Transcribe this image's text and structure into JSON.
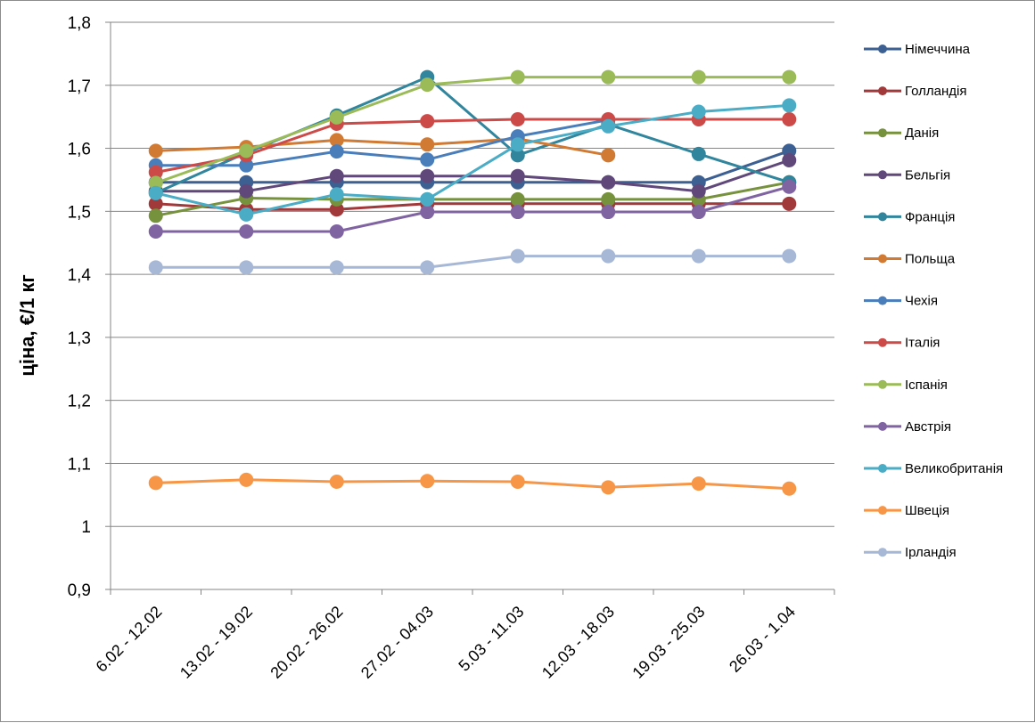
{
  "chart_data": {
    "type": "line",
    "title": "",
    "xlabel": "",
    "ylabel": "ціна, €/1 кг",
    "ylim": [
      0.9,
      1.8
    ],
    "ytick_step": 0.1,
    "ytick_labels": [
      "0,9",
      "1",
      "1,1",
      "1,2",
      "1,3",
      "1,4",
      "1,5",
      "1,6",
      "1,7",
      "1,8"
    ],
    "grid": true,
    "legend_position": "right",
    "categories": [
      "6.02 - 12.02",
      "13.02 - 19.02",
      "20.02 - 26.02",
      "27.02 - 04.03",
      "5.03 - 11.03",
      "12.03 - 18.03",
      "19.03 - 25.03",
      "26.03 - 1.04"
    ],
    "series": [
      {
        "name": "Німеччина",
        "color": "#3d6093",
        "values": [
          1.546,
          1.546,
          1.546,
          1.546,
          1.546,
          1.546,
          1.546,
          1.596
        ]
      },
      {
        "name": "Голландія",
        "color": "#a1383a",
        "values": [
          1.512,
          1.503,
          1.503,
          1.512,
          1.512,
          1.512,
          1.512,
          1.512
        ]
      },
      {
        "name": "Данія",
        "color": "#76923c",
        "values": [
          1.493,
          1.521,
          1.519,
          1.519,
          1.519,
          1.519,
          1.519,
          1.546
        ]
      },
      {
        "name": "Бельгія",
        "color": "#60497a",
        "values": [
          1.532,
          1.532,
          1.556,
          1.556,
          1.556,
          1.546,
          1.532,
          1.581
        ]
      },
      {
        "name": "Франція",
        "color": "#31859c",
        "values": [
          1.529,
          1.593,
          1.652,
          1.713,
          1.589,
          1.638,
          1.591,
          1.546
        ]
      },
      {
        "name": "Польща",
        "color": "#d07a33",
        "values": [
          1.596,
          1.602,
          1.613,
          1.606,
          1.615,
          1.589,
          null,
          null
        ]
      },
      {
        "name": "Чехія",
        "color": "#4a7ebb",
        "values": [
          1.573,
          1.573,
          1.595,
          1.582,
          1.619,
          1.645,
          null,
          null
        ]
      },
      {
        "name": "Італія",
        "color": "#cc4b49",
        "values": [
          1.562,
          1.589,
          1.639,
          1.643,
          1.646,
          1.646,
          1.646,
          1.646
        ]
      },
      {
        "name": "Іспанія",
        "color": "#9bbb59",
        "values": [
          1.545,
          1.596,
          1.649,
          1.701,
          1.713,
          1.713,
          1.713,
          1.713
        ]
      },
      {
        "name": "Австрія",
        "color": "#8064a2",
        "values": [
          1.468,
          1.468,
          1.468,
          1.499,
          1.499,
          1.499,
          1.499,
          1.539
        ]
      },
      {
        "name": "Великобританія",
        "color": "#4bacc6",
        "values": [
          1.529,
          1.495,
          1.527,
          1.519,
          1.606,
          1.635,
          1.658,
          1.668
        ]
      },
      {
        "name": "Швеція",
        "color": "#f79646",
        "values": [
          1.069,
          1.074,
          1.071,
          1.072,
          1.071,
          1.062,
          1.068,
          1.06
        ]
      },
      {
        "name": "Ірландія",
        "color": "#a6b8d6",
        "values": [
          1.411,
          1.411,
          1.411,
          1.411,
          1.429,
          1.429,
          1.429,
          1.429
        ]
      }
    ]
  }
}
